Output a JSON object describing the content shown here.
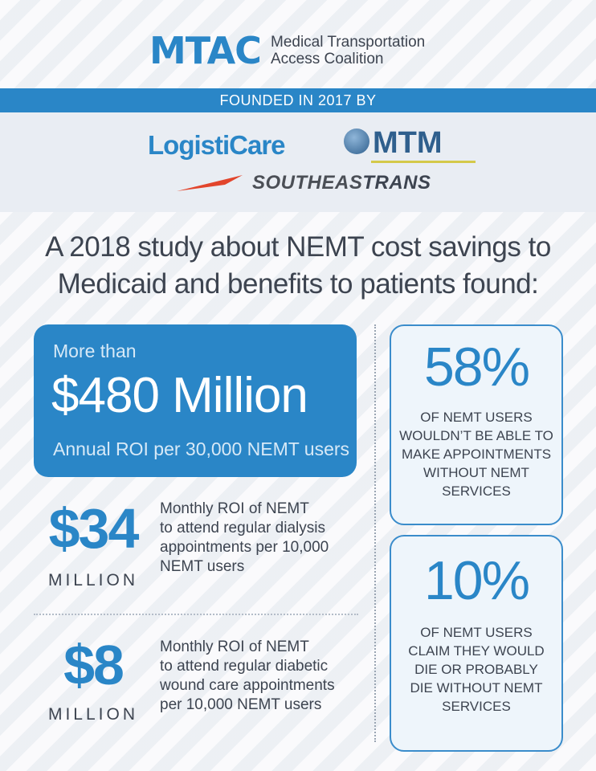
{
  "brand": {
    "mtac": "MTAC",
    "subtitle_line1": "Medical Transportation",
    "subtitle_line2": "Access Coalition",
    "accent_color": "#2a86c7"
  },
  "founded_band": "FOUNDED IN 2017 BY",
  "founders": {
    "logisticare": "LogistiCare",
    "mtm": "MTM",
    "southeast_prefix": "SOUTHEAS",
    "southeast_suffix": "TRANS"
  },
  "headline": {
    "line1": "A 2018 study about NEMT cost savings to",
    "line2": "Medicaid and benefits to patients found:"
  },
  "roi_box": {
    "prefix": "More than",
    "amount": "$480 Million",
    "caption": "Annual ROI per 30,000 NEMT users"
  },
  "stats": [
    {
      "number": "$34",
      "unit": "MILLION",
      "desc_lines": [
        "Monthly ROI of NEMT",
        "to attend regular dialysis",
        "appointments per 10,000",
        "NEMT users"
      ]
    },
    {
      "number": "$8",
      "unit": "MILLION",
      "desc_lines": [
        "Monthly ROI of NEMT",
        "to attend regular diabetic",
        "wound care appointments",
        "per 10,000 NEMT users"
      ]
    }
  ],
  "cards": [
    {
      "percent": "58%",
      "text_lines": [
        "OF NEMT USERS",
        "WOULDN’T BE ABLE TO",
        "MAKE APPOINTMENTS",
        "WITHOUT NEMT",
        "SERVICES"
      ]
    },
    {
      "percent": "10%",
      "text_lines": [
        "OF NEMT USERS",
        "CLAIM THEY WOULD",
        "DIE OR PROBABLY",
        "DIE WITHOUT NEMT",
        "SERVICES"
      ]
    }
  ]
}
